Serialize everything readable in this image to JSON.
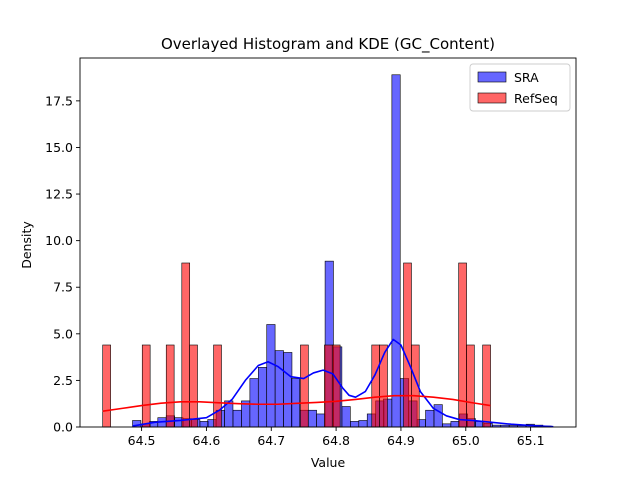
{
  "chart_data": {
    "type": "bar",
    "title": "Overlayed Histogram and KDE (GC_Content)",
    "xlabel": "Value",
    "ylabel": "Density",
    "xlim": [
      64.405,
      65.17
    ],
    "ylim": [
      0,
      19.8
    ],
    "xticks": [
      64.5,
      64.6,
      64.7,
      64.8,
      64.9,
      65.0,
      65.1
    ],
    "yticks": [
      0.0,
      2.5,
      5.0,
      7.5,
      10.0,
      12.5,
      15.0,
      17.5
    ],
    "legend": {
      "position": "top-right",
      "entries": [
        "SRA",
        "RefSeq"
      ]
    },
    "colors": {
      "SRA": "#0000ff",
      "RefSeq": "#ff0000"
    },
    "series": [
      {
        "name": "SRA",
        "kind": "histogram",
        "bin_width": 0.0129,
        "bins": [
          [
            64.486,
            0.35
          ],
          [
            64.499,
            0.17
          ],
          [
            64.512,
            0.3
          ],
          [
            64.525,
            0.5
          ],
          [
            64.538,
            0.6
          ],
          [
            64.551,
            0.5
          ],
          [
            64.564,
            0.45
          ],
          [
            64.577,
            0.4
          ],
          [
            64.59,
            0.3
          ],
          [
            64.602,
            0.4
          ],
          [
            64.615,
            0.9
          ],
          [
            64.628,
            1.4
          ],
          [
            64.641,
            0.9
          ],
          [
            64.654,
            1.4
          ],
          [
            64.667,
            2.6
          ],
          [
            64.68,
            3.2
          ],
          [
            64.693,
            5.5
          ],
          [
            64.706,
            4.1
          ],
          [
            64.719,
            4.0
          ],
          [
            64.731,
            2.6
          ],
          [
            64.744,
            0.9
          ],
          [
            64.757,
            0.9
          ],
          [
            64.77,
            0.7
          ],
          [
            64.783,
            8.9
          ],
          [
            64.796,
            4.3
          ],
          [
            64.809,
            1.1
          ],
          [
            64.822,
            0.3
          ],
          [
            64.835,
            0.35
          ],
          [
            64.848,
            0.7
          ],
          [
            64.861,
            1.4
          ],
          [
            64.873,
            1.5
          ],
          [
            64.886,
            18.9
          ],
          [
            64.899,
            2.6
          ],
          [
            64.912,
            1.4
          ],
          [
            64.925,
            0.4
          ],
          [
            64.938,
            0.9
          ],
          [
            64.951,
            1.2
          ],
          [
            64.964,
            0.17
          ],
          [
            64.977,
            0.3
          ],
          [
            64.99,
            0.7
          ],
          [
            65.002,
            0.45
          ],
          [
            65.015,
            0.3
          ],
          [
            65.028,
            0.2
          ],
          [
            65.041,
            0.1
          ],
          [
            65.054,
            0.1
          ],
          [
            65.067,
            0.08
          ],
          [
            65.08,
            0.08
          ],
          [
            65.093,
            0.15
          ],
          [
            65.106,
            0.1
          ],
          [
            65.119,
            0.05
          ]
        ],
        "kde": [
          [
            64.486,
            0.05
          ],
          [
            64.52,
            0.25
          ],
          [
            64.56,
            0.35
          ],
          [
            64.6,
            0.5
          ],
          [
            64.62,
            0.9
          ],
          [
            64.64,
            1.5
          ],
          [
            64.66,
            2.5
          ],
          [
            64.68,
            3.3
          ],
          [
            64.695,
            3.5
          ],
          [
            64.71,
            3.25
          ],
          [
            64.73,
            2.7
          ],
          [
            64.75,
            2.6
          ],
          [
            64.765,
            2.9
          ],
          [
            64.78,
            3.05
          ],
          [
            64.795,
            2.85
          ],
          [
            64.81,
            2.1
          ],
          [
            64.82,
            1.7
          ],
          [
            64.83,
            1.6
          ],
          [
            64.845,
            1.9
          ],
          [
            64.86,
            2.8
          ],
          [
            64.875,
            4.0
          ],
          [
            64.888,
            4.7
          ],
          [
            64.9,
            4.4
          ],
          [
            64.915,
            3.2
          ],
          [
            64.93,
            1.9
          ],
          [
            64.95,
            1.0
          ],
          [
            64.97,
            0.6
          ],
          [
            64.99,
            0.4
          ],
          [
            65.01,
            0.35
          ],
          [
            65.04,
            0.25
          ],
          [
            65.07,
            0.15
          ],
          [
            65.1,
            0.08
          ],
          [
            65.135,
            0.02
          ]
        ]
      },
      {
        "name": "RefSeq",
        "kind": "histogram",
        "bin_width": 0.0122,
        "bins": [
          [
            64.44,
            4.4
          ],
          [
            64.452,
            0.0
          ],
          [
            64.465,
            0.0
          ],
          [
            64.477,
            0.0
          ],
          [
            64.489,
            0.0
          ],
          [
            64.501,
            4.4
          ],
          [
            64.513,
            0.0
          ],
          [
            64.526,
            0.0
          ],
          [
            64.538,
            4.4
          ],
          [
            64.55,
            0.0
          ],
          [
            64.562,
            8.8
          ],
          [
            64.574,
            4.4
          ],
          [
            64.587,
            0.0
          ],
          [
            64.599,
            0.0
          ],
          [
            64.611,
            4.4
          ],
          [
            64.623,
            0.0
          ],
          [
            64.635,
            0.0
          ],
          [
            64.648,
            0.0
          ],
          [
            64.66,
            0.0
          ],
          [
            64.672,
            0.0
          ],
          [
            64.684,
            0.0
          ],
          [
            64.696,
            0.0
          ],
          [
            64.709,
            0.0
          ],
          [
            64.721,
            0.0
          ],
          [
            64.733,
            0.0
          ],
          [
            64.745,
            4.4
          ],
          [
            64.757,
            0.0
          ],
          [
            64.77,
            0.0
          ],
          [
            64.782,
            4.4
          ],
          [
            64.794,
            4.4
          ],
          [
            64.806,
            0.0
          ],
          [
            64.818,
            0.0
          ],
          [
            64.831,
            0.0
          ],
          [
            64.843,
            0.0
          ],
          [
            64.855,
            4.4
          ],
          [
            64.867,
            4.4
          ],
          [
            64.879,
            0.0
          ],
          [
            64.892,
            0.0
          ],
          [
            64.904,
            8.8
          ],
          [
            64.916,
            4.4
          ],
          [
            64.928,
            0.0
          ],
          [
            64.94,
            0.0
          ],
          [
            64.953,
            0.0
          ],
          [
            64.965,
            0.0
          ],
          [
            64.977,
            0.0
          ],
          [
            64.989,
            8.8
          ],
          [
            65.001,
            4.4
          ],
          [
            65.014,
            0.0
          ],
          [
            65.026,
            4.4
          ]
        ],
        "kde": [
          [
            64.44,
            0.85
          ],
          [
            64.47,
            1.0
          ],
          [
            64.5,
            1.15
          ],
          [
            64.53,
            1.28
          ],
          [
            64.56,
            1.35
          ],
          [
            64.59,
            1.35
          ],
          [
            64.62,
            1.3
          ],
          [
            64.65,
            1.25
          ],
          [
            64.68,
            1.22
          ],
          [
            64.71,
            1.22
          ],
          [
            64.74,
            1.27
          ],
          [
            64.77,
            1.32
          ],
          [
            64.8,
            1.38
          ],
          [
            64.83,
            1.48
          ],
          [
            64.86,
            1.6
          ],
          [
            64.89,
            1.68
          ],
          [
            64.92,
            1.68
          ],
          [
            64.95,
            1.6
          ],
          [
            64.98,
            1.48
          ],
          [
            65.01,
            1.3
          ],
          [
            65.038,
            1.15
          ]
        ]
      }
    ]
  }
}
